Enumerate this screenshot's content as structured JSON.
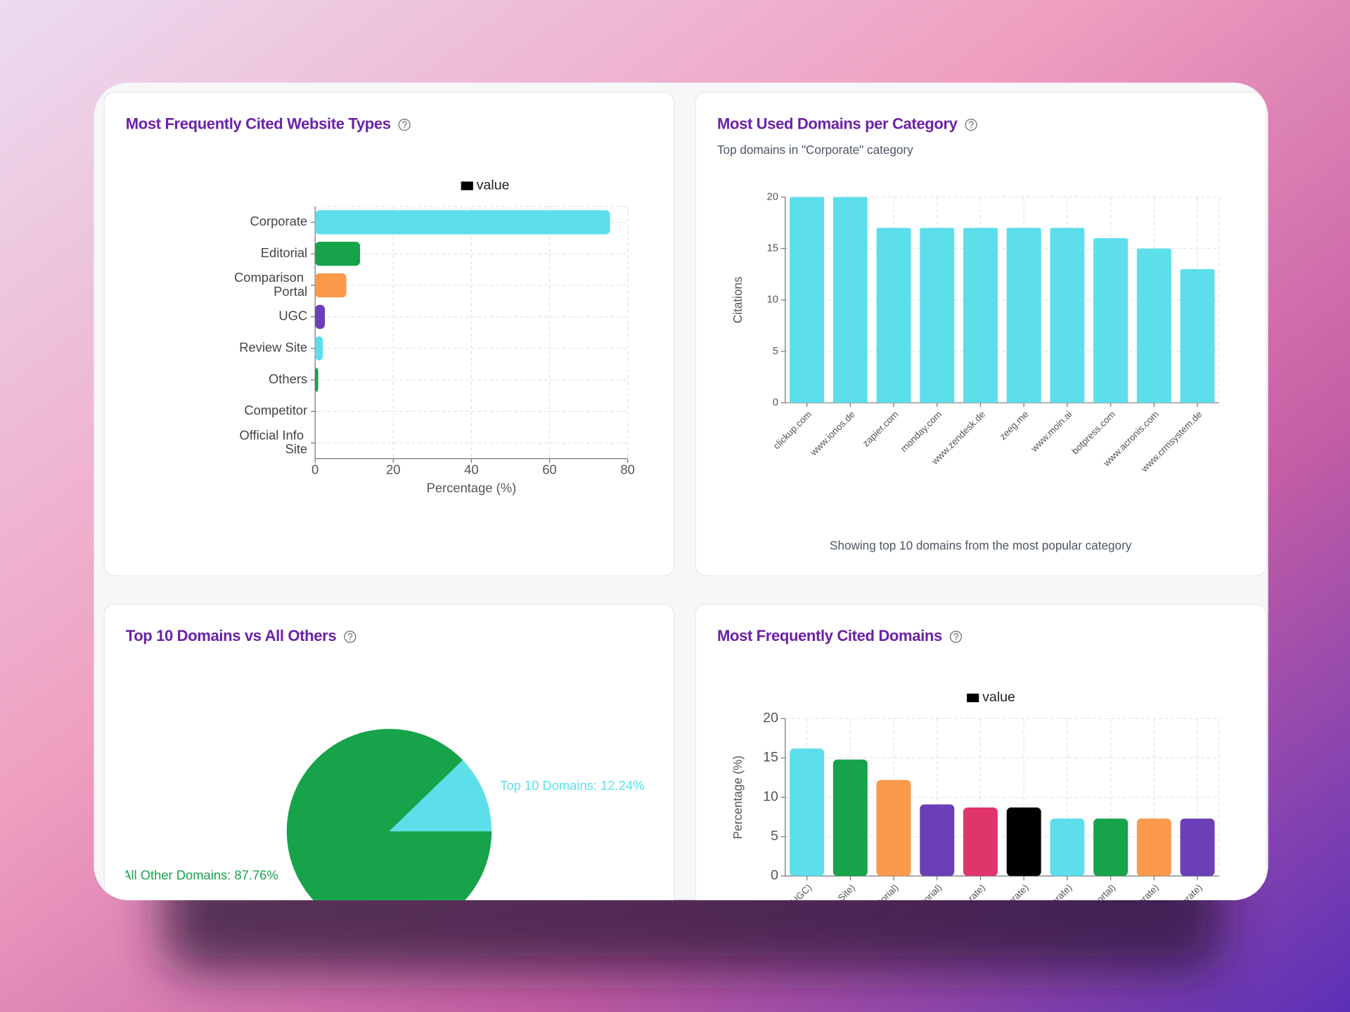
{
  "chart_data": [
    {
      "type": "bar",
      "orientation": "horizontal",
      "title": "Most Frequently Cited Website Types",
      "categories": [
        "Corporate",
        "Editorial",
        "Comparison Portal",
        "UGC",
        "Review Site",
        "Others",
        "Competitor",
        "Official Info Site"
      ],
      "series": [
        {
          "name": "value",
          "color": "#000000",
          "colors": [
            "#5ddfeb",
            "#16a34a",
            "#fb9a4b",
            "#6b3fb8",
            "#5ddfeb",
            "#16a34a",
            "#fb9a4b",
            "#6b3fb8"
          ],
          "values": [
            75.5,
            11.5,
            8,
            2.5,
            2,
            0.8,
            0,
            0
          ]
        }
      ],
      "xlim": [
        0,
        80
      ],
      "xticks": [
        0,
        20,
        40,
        60,
        80
      ],
      "xlabel": "Percentage (%)",
      "grid": true,
      "legend": "top"
    },
    {
      "type": "bar",
      "title": "Most Used Domains per Category",
      "subtitle": "Top domains in \"Corporate\" category",
      "categories": [
        "clickup.com",
        "www.ionos.de",
        "zapier.com",
        "monday.com",
        "www.zendesk.de",
        "zeeg.me",
        "www.moin.ai",
        "botpress.com",
        "www.acronis.com",
        "www.crmsystem.de"
      ],
      "values": [
        20,
        20,
        17,
        17,
        17,
        17,
        17,
        16,
        15,
        13
      ],
      "color": "#5ddfeb",
      "ylabel": "Citations",
      "ylim": [
        0,
        20
      ],
      "yticks": [
        0,
        5,
        10,
        15,
        20
      ],
      "grid": true,
      "note": "Showing top 10 domains from the most popular category"
    },
    {
      "type": "pie",
      "title": "Top 10 Domains vs All Others",
      "categories": [
        "Top 10 Domains",
        "All Other Domains"
      ],
      "values": [
        12.24,
        87.76
      ],
      "value_labels": [
        "Top 10 Domains: 12.24%",
        "All Other Domains: 87.76%"
      ],
      "colors": [
        "#5ddfeb",
        "#16a34a"
      ]
    },
    {
      "type": "bar",
      "title": "Most Frequently Cited Domains",
      "categories": [
        "UGC)",
        "Site)",
        "itorial)",
        "torial)",
        "rate)",
        "orate)",
        "orate)",
        "ortal)",
        "orate)",
        "orate)"
      ],
      "series": [
        {
          "name": "value",
          "color": "#000000",
          "colors": [
            "#5ddfeb",
            "#16a34a",
            "#fb9a4b",
            "#6b3fb8",
            "#e0356b",
            "#000000",
            "#5ddfeb",
            "#16a34a",
            "#fb9a4b",
            "#6b3fb8"
          ],
          "values": [
            16.2,
            14.8,
            12.2,
            9.1,
            8.7,
            8.7,
            7.3,
            7.3,
            7.3,
            7.3
          ]
        }
      ],
      "ylabel": "Percentage (%)",
      "ylim": [
        0,
        20
      ],
      "yticks": [
        0,
        5,
        10,
        15,
        20
      ],
      "grid": true,
      "legend": "top"
    }
  ]
}
